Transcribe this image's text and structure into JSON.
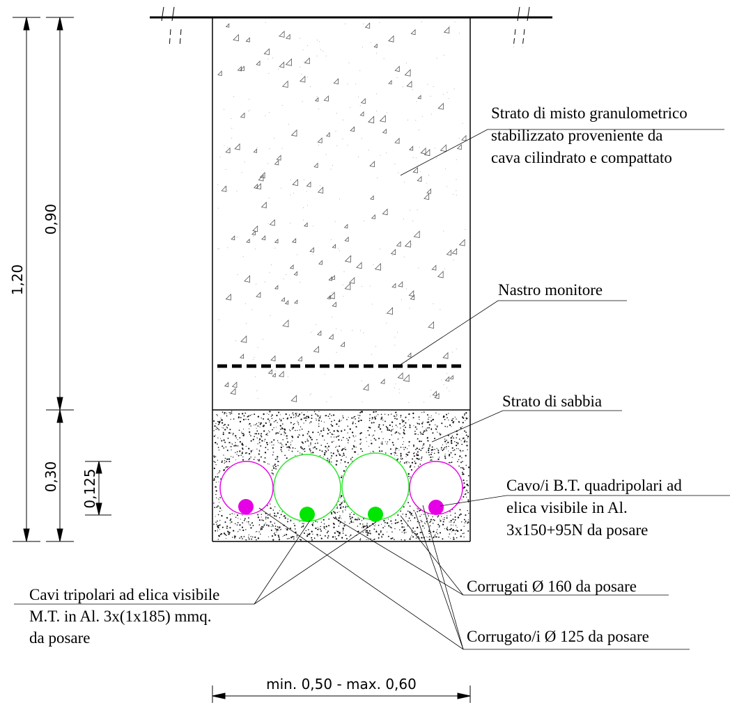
{
  "labels": {
    "misto": [
      "Strato di misto granulometrico",
      "stabilizzato proveniente da",
      "cava cilindrato e compattato"
    ],
    "nastro": "Nastro monitore",
    "sabbia": "Strato di sabbia",
    "cavo_bt": [
      "Cavo/i B.T. quadripolari ad",
      "elica visibile in Al.",
      "3x150+95N da posare"
    ],
    "corrugati_160": "Corrugati Ø 160 da posare",
    "corrugati_125": "Corrugato/i Ø 125 da posare",
    "cavi_mt": [
      "Cavi tripolari ad elica visibile",
      "M.T. in Al. 3x(1x185) mmq.",
      "da posare"
    ]
  },
  "dimensions": {
    "total_depth": "1,20",
    "fill_depth": "0,90",
    "sand_depth": "0,30",
    "pipe_height": "0,125",
    "width": "min. 0,50 - max. 0,60"
  },
  "colors": {
    "pipe_125": "#e600e6",
    "pipe_160": "#33e633",
    "cable": "#00e600",
    "line": "#000000"
  }
}
